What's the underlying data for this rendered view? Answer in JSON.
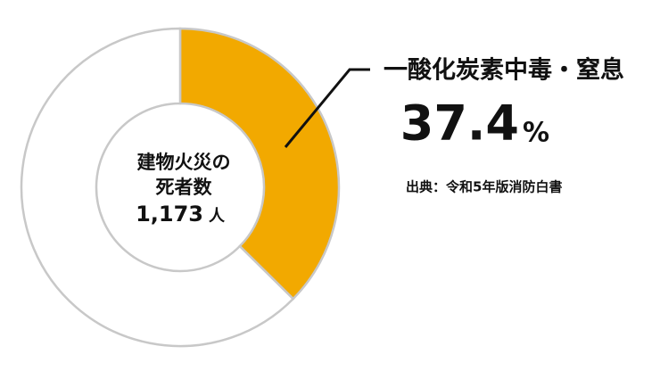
{
  "chart_data": {
    "type": "donut",
    "categories": [
      "一酸化炭素中毒・窒息",
      null
    ],
    "values": [
      37.4,
      62.6
    ],
    "colors": [
      "#f2a900",
      "#ffffff"
    ],
    "unit": "%",
    "center_label": [
      "建物火災の",
      "死者数"
    ],
    "total": {
      "value": 1173,
      "label": "1,173"
    },
    "total_unit": "人",
    "source": "出典：令和5年版消防白書"
  }
}
